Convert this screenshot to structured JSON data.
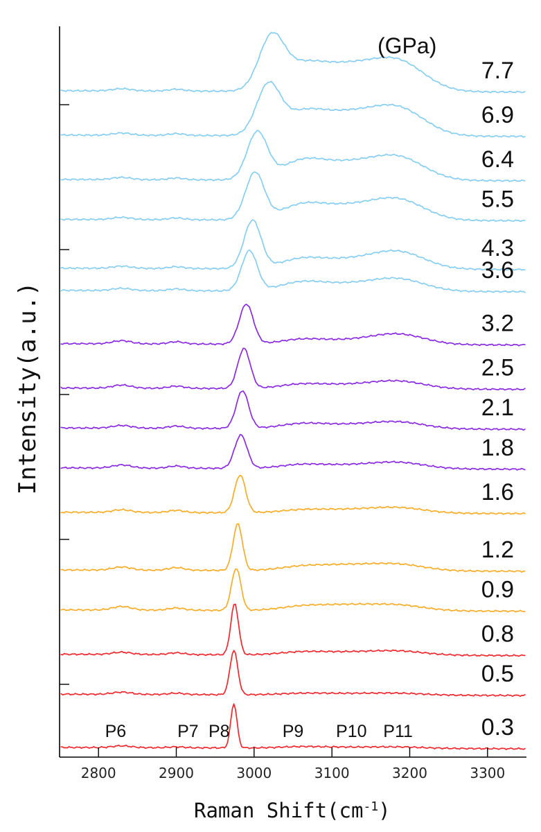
{
  "chart_data": {
    "type": "line",
    "xlabel": "Raman Shift(cm",
    "xlabel_superscript": "-1",
    "xlabel_close": ")",
    "ylabel": "Intensity(a.u.)",
    "xlim": [
      2750,
      3350
    ],
    "x_ticks": [
      2800,
      2900,
      3000,
      3100,
      3200,
      3300
    ],
    "x_tick_labels": [
      "2800",
      "2900",
      "3000",
      "3100",
      "3200",
      "3300"
    ],
    "pressure_unit": "(GPa)",
    "colors": {
      "red": "#f0282d",
      "orange": "#f7ad28",
      "purple": "#8a2be2",
      "skyblue": "#87cef0"
    },
    "peak_labels": [
      {
        "label": "P6",
        "x": 2822
      },
      {
        "label": "P7",
        "x": 2915
      },
      {
        "label": "P8",
        "x": 2955
      },
      {
        "label": "P9",
        "x": 3050
      },
      {
        "label": "P10",
        "x": 3125
      },
      {
        "label": "P11",
        "x": 3185
      }
    ],
    "series": [
      {
        "pressure": "0.3",
        "color": "red",
        "baseline": 0.0,
        "main_peak": {
          "center": 2974,
          "height": 1.0,
          "width": 4
        },
        "p6": 0.04,
        "p7": 0.02,
        "p9": 0.03,
        "p10": 0.02,
        "p11": 0.03
      },
      {
        "pressure": "0.5",
        "color": "red",
        "baseline": 1.2,
        "main_peak": {
          "center": 2974,
          "height": 1.0,
          "width": 5
        },
        "p6": 0.05,
        "p7": 0.03,
        "p9": 0.03,
        "p10": 0.03,
        "p11": 0.04
      },
      {
        "pressure": "0.8",
        "color": "red",
        "baseline": 2.1,
        "main_peak": {
          "center": 2975,
          "height": 1.15,
          "width": 5
        },
        "p6": 0.05,
        "p7": 0.04,
        "p9": 0.06,
        "p10": 0.06,
        "p11": 0.09
      },
      {
        "pressure": "0.9",
        "color": "orange",
        "baseline": 3.1,
        "main_peak": {
          "center": 2977,
          "height": 0.95,
          "width": 6
        },
        "p6": 0.08,
        "p7": 0.05,
        "p9": 0.08,
        "p10": 0.12,
        "p11": 0.12
      },
      {
        "pressure": "1.2",
        "color": "orange",
        "baseline": 4.0,
        "main_peak": {
          "center": 2979,
          "height": 1.05,
          "width": 6
        },
        "p6": 0.07,
        "p7": 0.06,
        "p9": 0.08,
        "p10": 0.12,
        "p11": 0.14
      },
      {
        "pressure": "1.6",
        "color": "orange",
        "baseline": 5.3,
        "main_peak": {
          "center": 2982,
          "height": 0.85,
          "width": 7
        },
        "p6": 0.06,
        "p7": 0.05,
        "p9": 0.06,
        "p10": 0.07,
        "p11": 0.12
      },
      {
        "pressure": "1.8",
        "color": "purple",
        "baseline": 6.3,
        "main_peak": {
          "center": 2983,
          "height": 0.75,
          "width": 8
        },
        "p6": 0.07,
        "p7": 0.05,
        "p9": 0.08,
        "p10": 0.07,
        "p11": 0.14
      },
      {
        "pressure": "2.1",
        "color": "purple",
        "baseline": 7.2,
        "main_peak": {
          "center": 2985,
          "height": 0.85,
          "width": 8
        },
        "p6": 0.06,
        "p7": 0.05,
        "p9": 0.1,
        "p10": 0.08,
        "p11": 0.15
      },
      {
        "pressure": "2.5",
        "color": "purple",
        "baseline": 8.1,
        "main_peak": {
          "center": 2987,
          "height": 0.9,
          "width": 8
        },
        "p6": 0.07,
        "p7": 0.05,
        "p9": 0.09,
        "p10": 0.08,
        "p11": 0.17
      },
      {
        "pressure": "3.2",
        "color": "purple",
        "baseline": 9.1,
        "main_peak": {
          "center": 2990,
          "height": 0.9,
          "width": 9
        },
        "p6": 0.07,
        "p7": 0.05,
        "p9": 0.1,
        "p10": 0.08,
        "p11": 0.23
      },
      {
        "pressure": "3.6",
        "color": "skyblue",
        "baseline": 10.3,
        "main_peak": {
          "center": 2994,
          "height": 0.9,
          "width": 10
        },
        "p6": 0.05,
        "p7": 0.04,
        "p9": 0.18,
        "p10": 0.14,
        "p11": 0.27
      },
      {
        "pressure": "4.3",
        "color": "skyblue",
        "baseline": 10.8,
        "main_peak": {
          "center": 2998,
          "height": 1.08,
          "width": 11
        },
        "p6": 0.05,
        "p7": 0.04,
        "p9": 0.2,
        "p10": 0.18,
        "p11": 0.38
      },
      {
        "pressure": "5.5",
        "color": "skyblue",
        "baseline": 11.9,
        "main_peak": {
          "center": 3001,
          "height": 1.05,
          "width": 12
        },
        "p6": 0.05,
        "p7": 0.04,
        "p9": 0.3,
        "p10": 0.28,
        "p11": 0.45
      },
      {
        "pressure": "6.4",
        "color": "skyblue",
        "baseline": 12.8,
        "main_peak": {
          "center": 3004,
          "height": 1.05,
          "width": 13
        },
        "p6": 0.05,
        "p7": 0.04,
        "p9": 0.38,
        "p10": 0.34,
        "p11": 0.5
      },
      {
        "pressure": "6.9",
        "color": "skyblue",
        "baseline": 13.8,
        "main_peak": {
          "center": 3018,
          "height": 1.05,
          "width": 15
        },
        "p6": 0.05,
        "p7": 0.04,
        "p9": 0.45,
        "p10": 0.45,
        "p11": 0.6
      },
      {
        "pressure": "7.7",
        "color": "skyblue",
        "baseline": 14.8,
        "main_peak": {
          "center": 3022,
          "height": 1.1,
          "width": 16
        },
        "p6": 0.05,
        "p7": 0.04,
        "p9": 0.5,
        "p10": 0.52,
        "p11": 0.65
      }
    ]
  }
}
